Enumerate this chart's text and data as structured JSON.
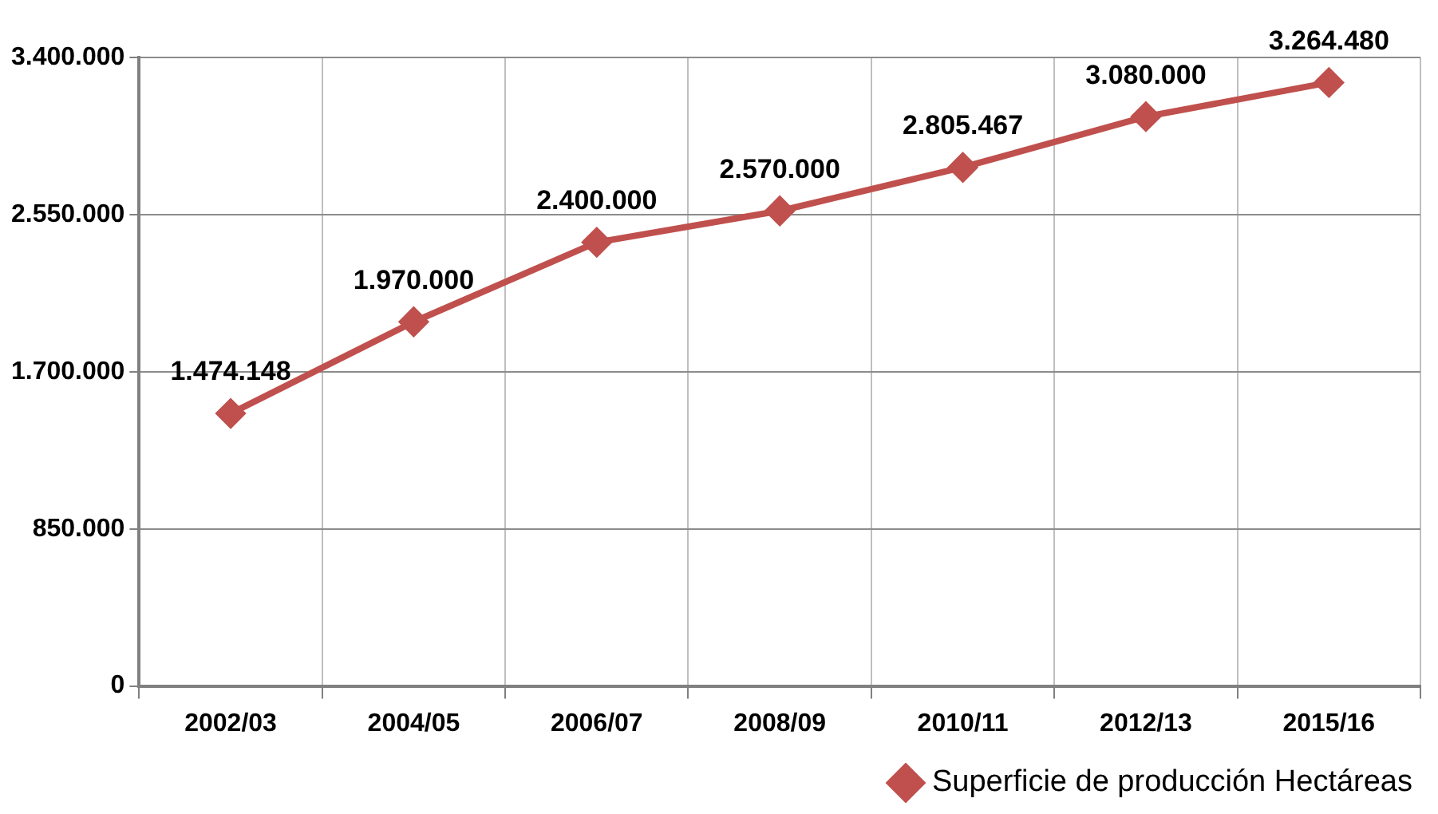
{
  "chart_data": {
    "type": "line",
    "categories": [
      "2002/03",
      "2004/05",
      "2006/07",
      "2008/09",
      "2010/11",
      "2012/13",
      "2015/16"
    ],
    "series": [
      {
        "name": "Superficie de producción Hectáreas",
        "color": "#c0504d",
        "values": [
          1474148,
          1970000,
          2400000,
          2570000,
          2805467,
          3080000,
          3264480
        ],
        "value_labels": [
          "1.474.148",
          "1.970.000",
          "2.400.000",
          "2.570.000",
          "2.805.467",
          "3.080.000",
          "3.264.480"
        ]
      }
    ],
    "ylim": [
      0,
      3400000
    ],
    "yticks": [
      {
        "value": 0,
        "label": "0"
      },
      {
        "value": 850000,
        "label": "850.000"
      },
      {
        "value": 1700000,
        "label": "1.700.000"
      },
      {
        "value": 2550000,
        "label": "2.550.000"
      },
      {
        "value": 3400000,
        "label": "3.400.000"
      }
    ],
    "grid": true,
    "legend": "bottom right",
    "marker": "diamond",
    "line_style": "solid"
  }
}
